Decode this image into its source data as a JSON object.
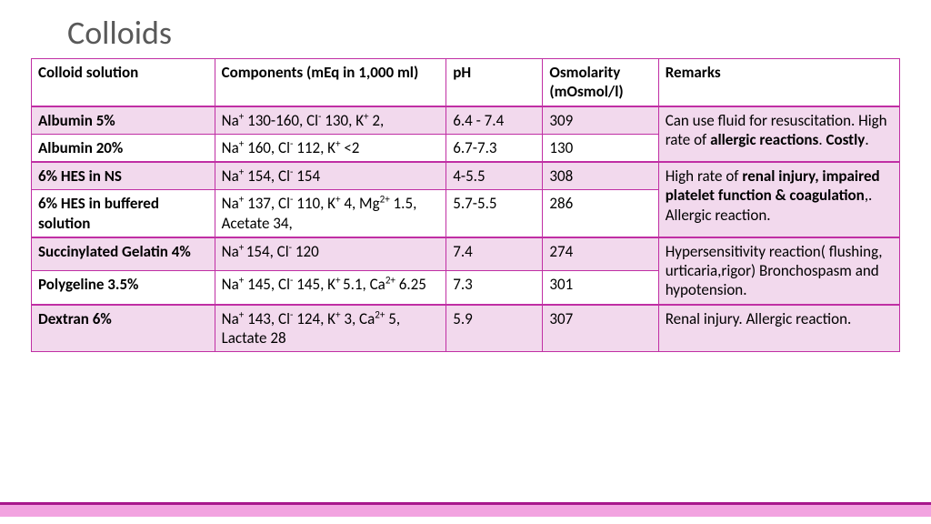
{
  "title": "Colloids",
  "colors": {
    "border": "#c02fa4",
    "shade": "#f2d9ed",
    "white": "#ffffff",
    "title_color": "#595959",
    "footer_bar": "#f2a3e0",
    "footer_border": "#a8178c"
  },
  "columns": [
    "Colloid solution",
    "Components (mEq in 1,000 ml)",
    "pH",
    "Osmolarity (mOsmol/l)",
    " Remarks"
  ],
  "rows": [
    {
      "name": "Albumin 5%",
      "comp_html": "Na<sup>+</sup> 130-160, Cl<sup>-</sup> 130, K<sup>+</sup> 2,",
      "ph": "6.4 - 7.4",
      "osm": "309",
      "shade": true
    },
    {
      "name": "Albumin 20%",
      "comp_html": "Na<sup>+</sup> 160, Cl<sup>-</sup> 112, K<sup>+</sup> <2",
      "ph": "6.7-7.3",
      "osm": "130",
      "shade": false
    },
    {
      "name": "6% HES in NS",
      "comp_html": "Na<sup>+</sup> 154, Cl<sup>-</sup> 154",
      "ph": "4-5.5",
      "osm": "308",
      "shade": true
    },
    {
      "name": "6% HES in buffered solution",
      "comp_html": "Na<sup>+</sup> 137, Cl<sup>-</sup> 110, K<sup>+</sup> 4, Mg<sup>2+</sup> 1.5, Acetate 34,",
      "ph": "5.7-5.5",
      "osm": "286",
      "shade": false
    },
    {
      "name": "Succinylated Gelatin 4%",
      "comp_html": "Na<sup>+ </sup>154, Cl<sup>-</sup> 120",
      "ph": "7.4",
      "osm": "274",
      "shade": true
    },
    {
      "name": "Polygeline 3.5%",
      "comp_html": "Na<sup>+</sup> 145, Cl<sup>-</sup> 145, K<sup>+ </sup>5.1, Ca<sup>2+</sup> 6.25",
      "ph": "7.3",
      "osm": "301",
      "shade": false
    },
    {
      "name": "Dextran 6%",
      "comp_html": "Na<sup>+</sup> 143, Cl<sup>-</sup> 124, K<sup>+</sup> 3, Ca<sup>2+</sup> 5, Lactate 28",
      "ph": "5.9",
      "osm": "307",
      "shade": true
    }
  ],
  "remarks": [
    {
      "html": "Can use fluid for resuscitation. High rate of <span class=\"bold\">allergic reactions</span>. <span class=\"bold\">Costly</span>.",
      "rowspan": 2,
      "shade": true
    },
    {
      "html": "High rate of <span class=\"bold\">renal injury, impaired platelet function & coagulation</span>,. Allergic reaction.",
      "rowspan": 2,
      "shade": true
    },
    {
      "html": "Hypersensitivity reaction( flushing, urticaria,rigor) Bronchospasm and hypotension.",
      "rowspan": 2,
      "shade": true
    },
    {
      "html": "Renal injury. Allergic reaction.",
      "rowspan": 1,
      "shade": true
    }
  ]
}
